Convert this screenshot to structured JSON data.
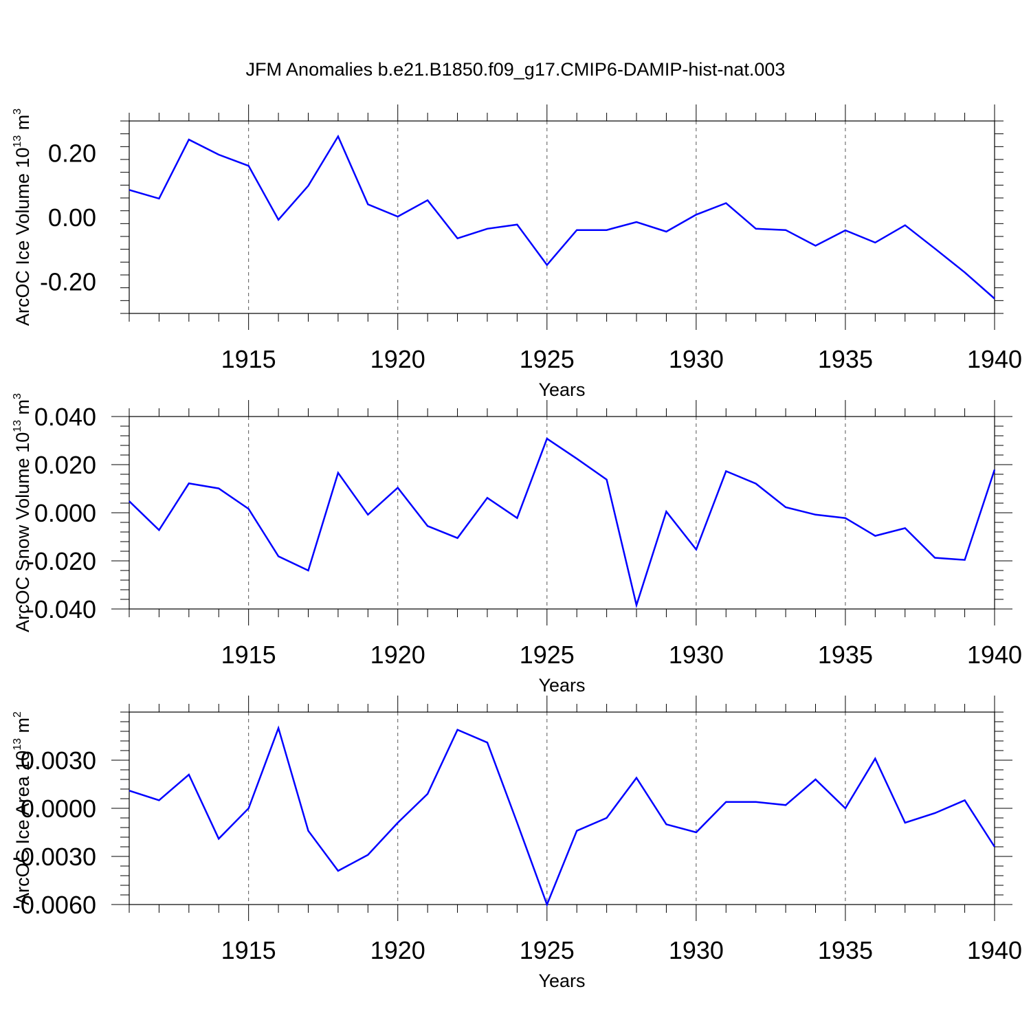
{
  "title": "JFM Anomalies b.e21.B1850.f09_g17.CMIP6-DAMIP-hist-nat.003",
  "line_color": "#0000ff",
  "chart_data": [
    {
      "type": "line",
      "title": "",
      "xlabel": "Years",
      "ylabel": "ArcOC Ice Volume 10",
      "ylabel_exponent": "13",
      "ylabel_unit": "m",
      "ylabel_unit_exponent": "3",
      "xlim": [
        1911,
        1940
      ],
      "ylim": [
        -0.3,
        0.3
      ],
      "xticks": [
        1915,
        1920,
        1925,
        1930,
        1935,
        1940
      ],
      "xtick_labels": [
        "1915",
        "1920",
        "1925",
        "1930",
        "1935",
        "1940"
      ],
      "yticks": [
        0.2,
        0.0,
        -0.2
      ],
      "ytick_labels": [
        "0.20",
        "0.00",
        "-0.20"
      ],
      "grid": "vertical dashed",
      "series": [
        {
          "x": [
            1911,
            1912,
            1913,
            1914,
            1915,
            1916,
            1917,
            1918,
            1919,
            1920,
            1921,
            1922,
            1923,
            1924,
            1925,
            1926,
            1927,
            1928,
            1929,
            1930,
            1931,
            1932,
            1933,
            1934,
            1935,
            1936,
            1937,
            1938,
            1939,
            1940
          ],
          "values": [
            0.085,
            0.058,
            0.242,
            0.195,
            0.16,
            -0.008,
            0.098,
            0.252,
            0.04,
            0.002,
            0.053,
            -0.066,
            -0.036,
            -0.023,
            -0.149,
            -0.04,
            -0.04,
            -0.015,
            -0.045,
            0.008,
            0.044,
            -0.036,
            -0.04,
            -0.089,
            -0.041,
            -0.079,
            -0.025,
            -0.098,
            -0.172,
            -0.254
          ]
        }
      ]
    },
    {
      "type": "line",
      "title": "",
      "xlabel": "Years",
      "ylabel": "ArcOC Snow Volume 10",
      "ylabel_exponent": "13",
      "ylabel_unit": "m",
      "ylabel_unit_exponent": "3",
      "xlim": [
        1911,
        1940
      ],
      "ylim": [
        -0.04,
        0.04
      ],
      "xticks": [
        1915,
        1920,
        1925,
        1930,
        1935,
        1940
      ],
      "xtick_labels": [
        "1915",
        "1920",
        "1925",
        "1930",
        "1935",
        "1940"
      ],
      "yticks": [
        0.04,
        0.02,
        0.0,
        -0.02,
        -0.04
      ],
      "ytick_labels": [
        "0.040",
        "0.020",
        "0.000",
        "-0.020",
        "-0.040"
      ],
      "grid": "vertical dashed",
      "series": [
        {
          "x": [
            1911,
            1912,
            1913,
            1914,
            1915,
            1916,
            1917,
            1918,
            1919,
            1920,
            1921,
            1922,
            1923,
            1924,
            1925,
            1926,
            1927,
            1928,
            1929,
            1930,
            1931,
            1932,
            1933,
            1934,
            1935,
            1936,
            1937,
            1938,
            1939,
            1940
          ],
          "values": [
            0.0048,
            -0.0072,
            0.0122,
            0.0101,
            0.0016,
            -0.0181,
            -0.024,
            0.0166,
            -0.0008,
            0.0104,
            -0.0055,
            -0.0105,
            0.0062,
            -0.0022,
            0.0308,
            0.0225,
            0.0138,
            -0.0384,
            0.0005,
            -0.0153,
            0.0173,
            0.0121,
            0.0023,
            -0.0008,
            -0.0022,
            -0.0096,
            -0.0064,
            -0.0187,
            -0.0196,
            0.0179
          ]
        }
      ]
    },
    {
      "type": "line",
      "title": "",
      "xlabel": "Years",
      "ylabel": "ArcOC Ice Area 10",
      "ylabel_exponent": "13",
      "ylabel_unit": "m",
      "ylabel_unit_exponent": "2",
      "xlim": [
        1911,
        1940
      ],
      "ylim": [
        -0.006,
        0.006
      ],
      "xticks": [
        1915,
        1920,
        1925,
        1930,
        1935,
        1940
      ],
      "xtick_labels": [
        "1915",
        "1920",
        "1925",
        "1930",
        "1935",
        "1940"
      ],
      "yticks": [
        0.003,
        0.0,
        -0.003,
        -0.006
      ],
      "ytick_labels": [
        "0.0030",
        "0.0000",
        "-0.0030",
        "-0.0060"
      ],
      "grid": "vertical dashed",
      "series": [
        {
          "x": [
            1911,
            1912,
            1913,
            1914,
            1915,
            1916,
            1917,
            1918,
            1919,
            1920,
            1921,
            1922,
            1923,
            1924,
            1925,
            1926,
            1927,
            1928,
            1929,
            1930,
            1931,
            1932,
            1933,
            1934,
            1935,
            1936,
            1937,
            1938,
            1939,
            1940
          ],
          "values": [
            0.0011,
            0.0005,
            0.0021,
            -0.0019,
            0.0,
            0.005,
            -0.0014,
            -0.0039,
            -0.0029,
            -0.0009,
            0.0009,
            0.0049,
            0.0041,
            -0.0009,
            -0.006,
            -0.0014,
            -0.0006,
            0.0019,
            -0.001,
            -0.0015,
            0.0004,
            0.0004,
            0.0002,
            0.0018,
            0.0,
            0.0031,
            -0.0009,
            -0.0003,
            0.0005,
            -0.0024
          ]
        }
      ]
    }
  ]
}
